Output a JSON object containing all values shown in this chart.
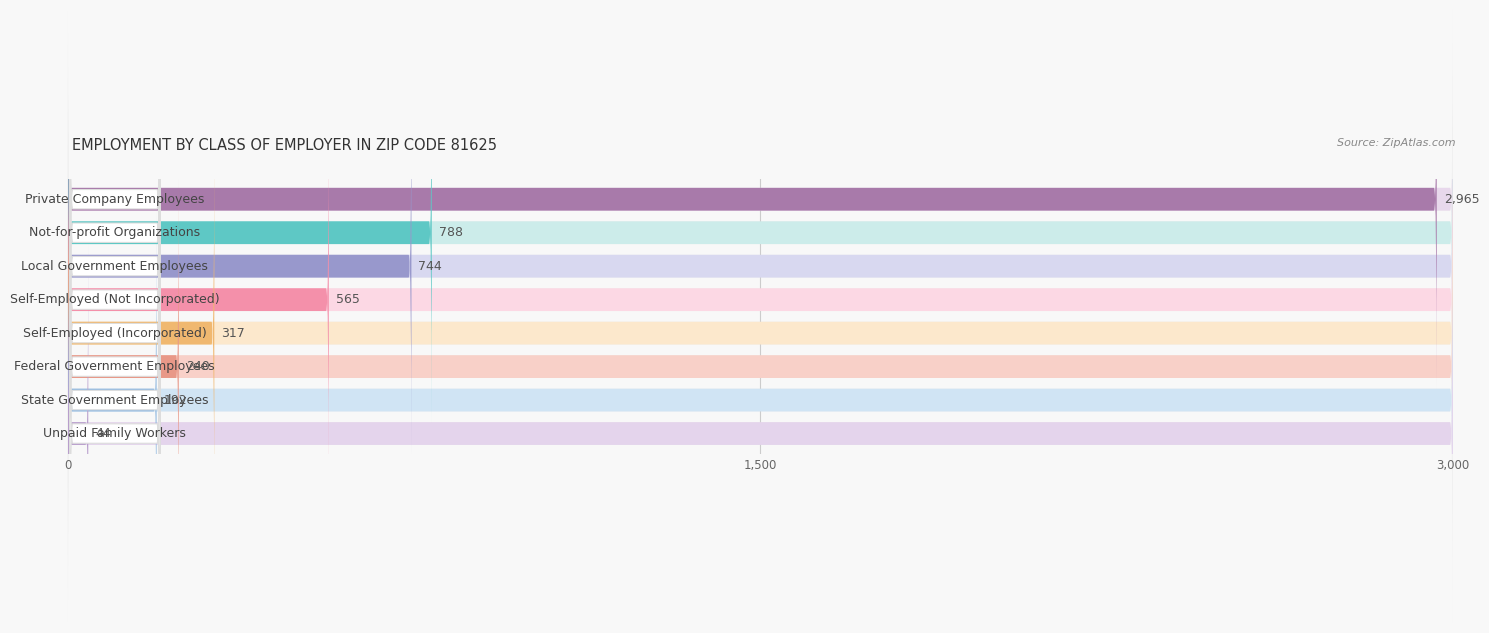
{
  "title": "EMPLOYMENT BY CLASS OF EMPLOYER IN ZIP CODE 81625",
  "source": "Source: ZipAtlas.com",
  "categories": [
    "Private Company Employees",
    "Not-for-profit Organizations",
    "Local Government Employees",
    "Self-Employed (Not Incorporated)",
    "Self-Employed (Incorporated)",
    "Federal Government Employees",
    "State Government Employees",
    "Unpaid Family Workers"
  ],
  "values": [
    2965,
    788,
    744,
    565,
    317,
    240,
    192,
    44
  ],
  "bar_colors": [
    "#a87aaa",
    "#5ec8c5",
    "#9898cc",
    "#f490aa",
    "#f0b870",
    "#e89888",
    "#90b8e0",
    "#b89ecc"
  ],
  "bar_bg_colors": [
    "#e8d8ec",
    "#ccecea",
    "#d8d8f0",
    "#fcd8e4",
    "#fce8cc",
    "#f8d0c8",
    "#d0e4f4",
    "#e4d4ec"
  ],
  "row_bg_color": "#f0f0f0",
  "value_labels": [
    "2,965",
    "788",
    "744",
    "565",
    "317",
    "240",
    "192",
    "44"
  ],
  "xlim": [
    0,
    3000
  ],
  "xticks": [
    0,
    1500,
    3000
  ],
  "xtick_labels": [
    "0",
    "1,500",
    "3,000"
  ],
  "bg_color": "#f8f8f8",
  "title_fontsize": 10.5,
  "label_fontsize": 9,
  "value_fontsize": 9,
  "source_fontsize": 8
}
